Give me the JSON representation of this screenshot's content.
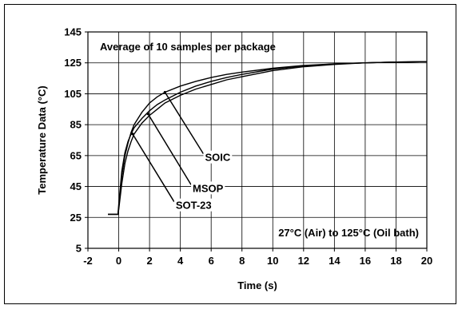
{
  "chart_data": {
    "type": "line",
    "title": "",
    "xlabel": "Time (s)",
    "ylabel": "Temperature Data (°C)",
    "xlim": [
      -2,
      20
    ],
    "ylim": [
      5,
      145
    ],
    "x_ticks": [
      -2,
      0,
      2,
      4,
      6,
      8,
      10,
      12,
      14,
      16,
      18,
      20
    ],
    "y_ticks": [
      5,
      25,
      45,
      65,
      85,
      105,
      125,
      145
    ],
    "x_tick_labels": [
      "-2",
      "0",
      "2",
      "4",
      "6",
      "8",
      "10",
      "12",
      "14",
      "16",
      "18",
      "20"
    ],
    "y_tick_labels": [
      "5",
      "25",
      "45",
      "65",
      "85",
      "105",
      "125",
      "145"
    ],
    "grid": true,
    "legend": "none",
    "annotations": [
      {
        "text": "Average of 10 samples per package",
        "position": "top-left"
      },
      {
        "text": "27°C (Air) to 125°C (Oil bath)",
        "position": "bottom-right"
      }
    ],
    "series": [
      {
        "name": "SOT-23",
        "label_at": [
          3.7,
          31
        ],
        "arrow_to": [
          0.9,
          79
        ],
        "x": [
          -0.7,
          -0.05,
          0,
          0.2,
          0.4,
          0.6,
          0.8,
          1.0,
          1.5,
          2,
          2.5,
          3,
          4,
          5,
          6,
          7,
          8,
          10,
          12,
          14,
          16,
          18,
          20
        ],
        "values": [
          27,
          27,
          30,
          47,
          60,
          68,
          74,
          79,
          86,
          91,
          95,
          99,
          104,
          108,
          111,
          114,
          116,
          120,
          122.5,
          124,
          125,
          125.5,
          125.8
        ]
      },
      {
        "name": "MSOP",
        "label_at": [
          4.8,
          42
        ],
        "arrow_to": [
          1.9,
          92
        ],
        "x": [
          -0.7,
          -0.05,
          0,
          0.2,
          0.4,
          0.6,
          0.8,
          1.0,
          1.5,
          2,
          2.5,
          3,
          4,
          5,
          6,
          7,
          8,
          10,
          12,
          14,
          16,
          18,
          20
        ],
        "values": [
          27,
          27,
          33,
          55,
          67,
          74,
          79,
          83,
          89,
          94,
          98,
          101,
          106,
          110,
          113,
          115.5,
          117.5,
          121,
          123,
          124.3,
          125,
          125.5,
          125.8
        ]
      },
      {
        "name": "SOIC",
        "label_at": [
          5.6,
          62
        ],
        "arrow_to": [
          3.0,
          106
        ],
        "x": [
          -0.7,
          -0.05,
          0,
          0.2,
          0.4,
          0.6,
          0.8,
          1.0,
          1.5,
          2,
          2.5,
          3,
          4,
          5,
          6,
          7,
          8,
          10,
          12,
          14,
          16,
          18,
          20
        ],
        "values": [
          27,
          27,
          31,
          52,
          65,
          73,
          80,
          85,
          93,
          99,
          103,
          106,
          110,
          113,
          115.5,
          117.5,
          119,
          121.5,
          123.3,
          124.4,
          125,
          125.5,
          125.8
        ]
      }
    ]
  }
}
